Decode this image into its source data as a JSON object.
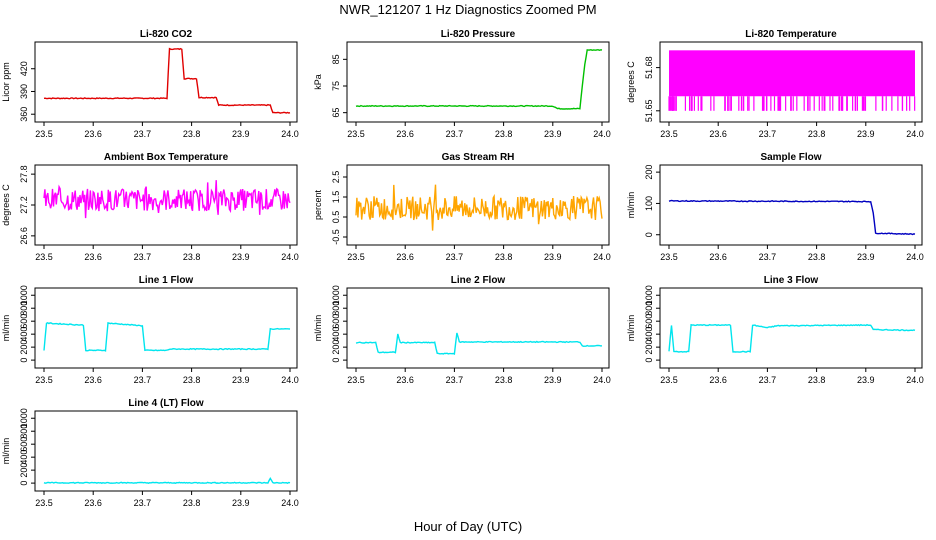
{
  "figure": {
    "title": "NWR_121207  1 Hz Diagnostics Zoomed PM",
    "xlabel": "Hour of Day (UTC)"
  },
  "chart_data": [
    {
      "type": "line",
      "title": "Li-820 CO2",
      "ylabel": "Licor ppm",
      "color": "#e00000",
      "xlim": [
        23.5,
        24.0
      ],
      "xticks": [
        23.5,
        23.6,
        23.7,
        23.8,
        23.9,
        24.0
      ],
      "ylim": [
        355,
        450
      ],
      "yticks": [
        360,
        390,
        420
      ],
      "series": [
        {
          "points": [
            [
              23.5,
              381
            ],
            [
              23.75,
              381
            ],
            [
              23.755,
              446
            ],
            [
              23.78,
              446
            ],
            [
              23.785,
              407
            ],
            [
              23.81,
              407
            ],
            [
              23.815,
              382
            ],
            [
              23.85,
              382
            ],
            [
              23.855,
              372
            ],
            [
              23.96,
              372
            ],
            [
              23.965,
              362
            ],
            [
              24.0,
              362
            ]
          ]
        }
      ]
    },
    {
      "type": "line",
      "title": "Li-820 Pressure",
      "ylabel": "kPa",
      "color": "#00c000",
      "xlim": [
        23.5,
        24.0
      ],
      "xticks": [
        23.5,
        23.6,
        23.7,
        23.8,
        23.9,
        24.0
      ],
      "ylim": [
        63,
        90
      ],
      "yticks": [
        65,
        75,
        85
      ],
      "series": [
        {
          "points": [
            [
              23.5,
              67.5
            ],
            [
              23.9,
              67.5
            ],
            [
              23.91,
              66.5
            ],
            [
              23.955,
              66.5
            ],
            [
              23.96,
              75
            ],
            [
              23.965,
              83
            ],
            [
              23.97,
              88.5
            ],
            [
              24.0,
              88.5
            ]
          ]
        }
      ]
    },
    {
      "type": "line",
      "title": "Li-820 Temperature",
      "ylabel": "degrees C",
      "color": "#ff00ff",
      "noise": "spikes",
      "xlim": [
        23.5,
        24.0
      ],
      "xticks": [
        23.5,
        23.6,
        23.7,
        23.8,
        23.9,
        24.0
      ],
      "ylim": [
        51.645,
        51.695
      ],
      "yticks": [
        51.65,
        51.68
      ],
      "series": [
        {
          "base": 51.67,
          "amplitude": 0.022,
          "spike_to": 51.65,
          "points": [
            [
              23.5,
              51.67
            ],
            [
              24.0,
              51.67
            ]
          ]
        }
      ]
    },
    {
      "type": "line",
      "title": "Ambient Box Temperature",
      "ylabel": "degrees C",
      "color": "#ff00ff",
      "noise": "random",
      "xlim": [
        23.5,
        24.0
      ],
      "xticks": [
        23.5,
        23.6,
        23.7,
        23.8,
        23.9,
        24.0
      ],
      "ylim": [
        26.5,
        27.9
      ],
      "yticks": [
        26.6,
        27.2,
        27.8
      ],
      "series": [
        {
          "base": 27.3,
          "amplitude": 0.22,
          "points": [
            [
              23.5,
              27.3
            ],
            [
              24.0,
              27.3
            ]
          ]
        }
      ]
    },
    {
      "type": "line",
      "title": "Gas Stream RH",
      "ylabel": "percent",
      "color": "#ffa500",
      "noise": "random",
      "xlim": [
        23.5,
        24.0
      ],
      "xticks": [
        23.5,
        23.6,
        23.7,
        23.8,
        23.9,
        24.0
      ],
      "ylim": [
        -0.7,
        2.9
      ],
      "yticks": [
        -0.5,
        0.5,
        1.5,
        2.5
      ],
      "series": [
        {
          "base": 0.95,
          "amplitude": 0.6,
          "points": [
            [
              23.5,
              0.95
            ],
            [
              24.0,
              0.95
            ]
          ]
        }
      ]
    },
    {
      "type": "line",
      "title": "Sample Flow",
      "ylabel": "ml/min",
      "color": "#0000c0",
      "xlim": [
        23.5,
        24.0
      ],
      "xticks": [
        23.5,
        23.6,
        23.7,
        23.8,
        23.9,
        24.0
      ],
      "ylim": [
        -20,
        210
      ],
      "yticks": [
        0,
        100,
        200
      ],
      "series": [
        {
          "points": [
            [
              23.5,
              108
            ],
            [
              23.91,
              106
            ],
            [
              23.915,
              70
            ],
            [
              23.92,
              5
            ],
            [
              24.0,
              2
            ]
          ]
        }
      ]
    },
    {
      "type": "line",
      "title": "Line 1 Flow",
      "ylabel": "ml/min",
      "color": "#00e5ee",
      "xlim": [
        23.5,
        24.0
      ],
      "xticks": [
        23.5,
        23.6,
        23.7,
        23.8,
        23.9,
        24.0
      ],
      "ylim": [
        -60,
        1050
      ],
      "yticks": [
        0,
        200,
        400,
        600,
        800,
        1000
      ],
      "series": [
        {
          "points": [
            [
              23.5,
              150
            ],
            [
              23.505,
              570
            ],
            [
              23.58,
              540
            ],
            [
              23.585,
              150
            ],
            [
              23.625,
              150
            ],
            [
              23.63,
              570
            ],
            [
              23.7,
              530
            ],
            [
              23.705,
              150
            ],
            [
              23.75,
              150
            ],
            [
              23.755,
              170
            ],
            [
              23.955,
              170
            ],
            [
              23.96,
              480
            ],
            [
              24.0,
              480
            ]
          ]
        }
      ]
    },
    {
      "type": "line",
      "title": "Line 2 Flow",
      "ylabel": "ml/min",
      "color": "#00e5ee",
      "xlim": [
        23.5,
        24.0
      ],
      "xticks": [
        23.5,
        23.6,
        23.7,
        23.8,
        23.9,
        24.0
      ],
      "ylim": [
        -60,
        1050
      ],
      "yticks": [
        0,
        200,
        400,
        600,
        800,
        1000
      ],
      "series": [
        {
          "points": [
            [
              23.5,
              270
            ],
            [
              23.54,
              270
            ],
            [
              23.545,
              120
            ],
            [
              23.58,
              120
            ],
            [
              23.585,
              400
            ],
            [
              23.59,
              270
            ],
            [
              23.66,
              270
            ],
            [
              23.665,
              100
            ],
            [
              23.7,
              100
            ],
            [
              23.705,
              420
            ],
            [
              23.71,
              280
            ],
            [
              23.955,
              280
            ],
            [
              23.96,
              220
            ],
            [
              24.0,
              220
            ]
          ]
        }
      ]
    },
    {
      "type": "line",
      "title": "Line 3 Flow",
      "ylabel": "ml/min",
      "color": "#00e5ee",
      "xlim": [
        23.5,
        24.0
      ],
      "xticks": [
        23.5,
        23.6,
        23.7,
        23.8,
        23.9,
        24.0
      ],
      "ylim": [
        -60,
        1050
      ],
      "yticks": [
        0,
        200,
        400,
        600,
        800,
        1000
      ],
      "series": [
        {
          "points": [
            [
              23.5,
              130
            ],
            [
              23.505,
              540
            ],
            [
              23.51,
              130
            ],
            [
              23.54,
              130
            ],
            [
              23.545,
              540
            ],
            [
              23.6,
              540
            ],
            [
              23.625,
              540
            ],
            [
              23.63,
              130
            ],
            [
              23.665,
              130
            ],
            [
              23.67,
              540
            ],
            [
              23.7,
              500
            ],
            [
              23.72,
              530
            ],
            [
              23.91,
              540
            ],
            [
              23.915,
              470
            ],
            [
              24.0,
              460
            ]
          ]
        }
      ]
    },
    {
      "type": "line",
      "title": "Line 4 (LT) Flow",
      "ylabel": "ml/min",
      "color": "#00e5ee",
      "xlim": [
        23.5,
        24.0
      ],
      "xticks": [
        23.5,
        23.6,
        23.7,
        23.8,
        23.9,
        24.0
      ],
      "ylim": [
        -60,
        1050
      ],
      "yticks": [
        0,
        200,
        400,
        600,
        800,
        1000
      ],
      "series": [
        {
          "points": [
            [
              23.5,
              5
            ],
            [
              23.955,
              5
            ],
            [
              23.96,
              70
            ],
            [
              23.965,
              5
            ],
            [
              24.0,
              5
            ]
          ]
        }
      ]
    }
  ]
}
